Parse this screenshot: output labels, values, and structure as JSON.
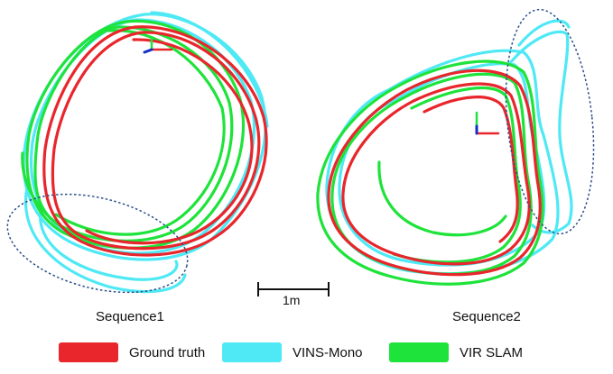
{
  "sequences": [
    {
      "label": "Sequence1"
    },
    {
      "label": "Sequence2"
    }
  ],
  "scale_bar": {
    "label": "1m"
  },
  "legend": [
    {
      "label": "Ground truth",
      "color": "#e8262c"
    },
    {
      "label": "VINS-Mono",
      "color": "#4ee9f5"
    },
    {
      "label": "VIR SLAM",
      "color": "#1ee33a"
    }
  ],
  "highlight_color": "#2b4f8a"
}
